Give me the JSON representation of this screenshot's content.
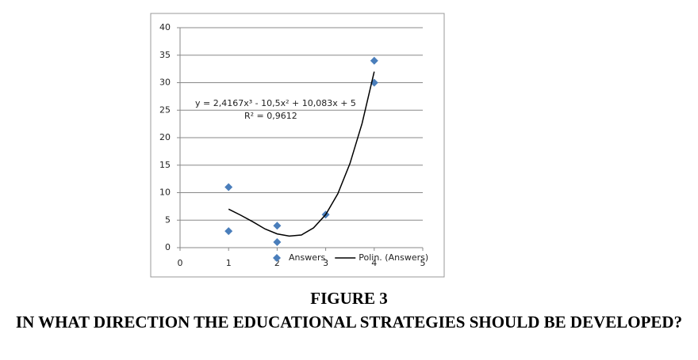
{
  "chart_data": {
    "type": "scatter",
    "series": [
      {
        "name": "Answers",
        "type": "scatter",
        "color": "#4a7ebb",
        "x": [
          1,
          1,
          2,
          2,
          3,
          4,
          4
        ],
        "values": [
          11,
          3,
          4,
          1,
          6,
          34,
          30
        ]
      },
      {
        "name": "Polin. (Answers)",
        "type": "line",
        "color": "#000000",
        "x": [
          1,
          1.25,
          1.5,
          1.75,
          2,
          2.25,
          2.5,
          2.75,
          3,
          3.25,
          3.5,
          3.75,
          4
        ],
        "values": [
          7,
          5.9,
          4.7,
          3.4,
          2.5,
          2.1,
          2.3,
          3.6,
          6,
          9.8,
          15.3,
          22.6,
          32
        ]
      }
    ],
    "annotations": [
      "y = 2,4167x³ - 10,5x² + 10,083x + 5",
      "R² = 0,9612"
    ],
    "xlim": [
      0,
      5
    ],
    "xticks": [
      0,
      1,
      2,
      3,
      4,
      5
    ],
    "ylim": [
      0,
      40
    ],
    "yticks": [
      0,
      5,
      10,
      15,
      20,
      25,
      30,
      35,
      40
    ],
    "grid": true,
    "legend": "bottom"
  },
  "figure": {
    "label": "FIGURE 3",
    "caption": "IN WHAT DIRECTION THE EDUCATIONAL STRATEGIES SHOULD BE DEVELOPED?"
  }
}
